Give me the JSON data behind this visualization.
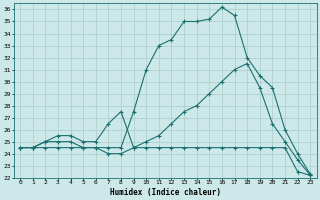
{
  "xlabel": "Humidex (Indice chaleur)",
  "bg_color": "#cde8e8",
  "grid_color": "#aacccc",
  "line_color": "#1a7070",
  "xlim": [
    -0.5,
    23.5
  ],
  "ylim": [
    22,
    36.5
  ],
  "yticks": [
    22,
    23,
    24,
    25,
    26,
    27,
    28,
    29,
    30,
    31,
    32,
    33,
    34,
    35,
    36
  ],
  "xticks": [
    0,
    1,
    2,
    3,
    4,
    5,
    6,
    7,
    8,
    9,
    10,
    11,
    12,
    13,
    14,
    15,
    16,
    17,
    18,
    19,
    20,
    21,
    22,
    23
  ],
  "line1_x": [
    0,
    1,
    2,
    3,
    4,
    5,
    6,
    7,
    8,
    9,
    10,
    11,
    12,
    13,
    14,
    15,
    16,
    17,
    18,
    19,
    20,
    21,
    22,
    23
  ],
  "line1_y": [
    24.5,
    24.5,
    24.5,
    24.5,
    24.5,
    24.5,
    24.5,
    24.5,
    24.5,
    27.5,
    31.0,
    33.0,
    33.5,
    35.0,
    35.0,
    35.2,
    36.2,
    35.5,
    32.0,
    30.5,
    29.5,
    26.0,
    24.0,
    22.3
  ],
  "line2_x": [
    0,
    1,
    2,
    3,
    4,
    5,
    6,
    7,
    8,
    9,
    10,
    11,
    12,
    13,
    14,
    15,
    16,
    17,
    18,
    19,
    20,
    21,
    22,
    23
  ],
  "line2_y": [
    24.5,
    24.5,
    25.0,
    25.5,
    25.5,
    25.0,
    25.0,
    26.5,
    27.5,
    24.5,
    24.5,
    24.5,
    24.5,
    24.5,
    24.5,
    24.5,
    24.5,
    24.5,
    24.5,
    24.5,
    24.5,
    24.5,
    22.5,
    22.2
  ],
  "line3_x": [
    0,
    1,
    2,
    3,
    4,
    5,
    6,
    7,
    8,
    9,
    10,
    11,
    12,
    13,
    14,
    15,
    16,
    17,
    18,
    19,
    20,
    21,
    22,
    23
  ],
  "line3_y": [
    24.5,
    24.5,
    25.0,
    25.0,
    25.0,
    24.5,
    24.5,
    24.0,
    24.0,
    24.5,
    25.0,
    25.5,
    26.5,
    27.5,
    28.0,
    29.0,
    30.0,
    31.0,
    31.5,
    29.5,
    26.5,
    25.0,
    23.5,
    22.2
  ]
}
